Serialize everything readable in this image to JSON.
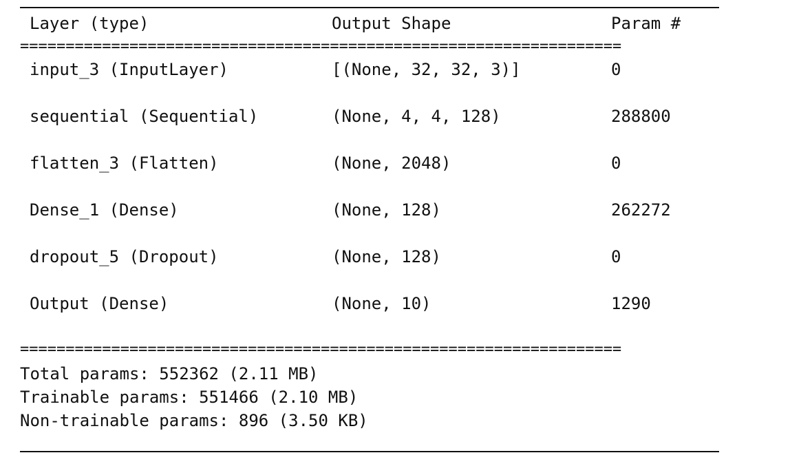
{
  "header": {
    "layer_type": "Layer (type)",
    "output_shape": "Output Shape",
    "param_count": "Param #"
  },
  "separator": "==================================================================",
  "rows": [
    {
      "layer": "input_3 (InputLayer)",
      "output_shape": "[(None, 32, 32, 3)]",
      "params": "0"
    },
    {
      "layer": "sequential (Sequential)",
      "output_shape": "(None, 4, 4, 128)",
      "params": "288800"
    },
    {
      "layer": "flatten_3 (Flatten)",
      "output_shape": "(None, 2048)",
      "params": "0"
    },
    {
      "layer": "Dense_1 (Dense)",
      "output_shape": "(None, 128)",
      "params": "262272"
    },
    {
      "layer": "dropout_5 (Dropout)",
      "output_shape": "(None, 128)",
      "params": "0"
    },
    {
      "layer": "Output (Dense)",
      "output_shape": "(None, 10)",
      "params": "1290"
    }
  ],
  "summary": {
    "total": "Total params: 552362 (2.11 MB)",
    "trainable": "Trainable params: 551466 (2.10 MB)",
    "non_trainable": "Non-trainable params: 896 (3.50 KB)"
  }
}
